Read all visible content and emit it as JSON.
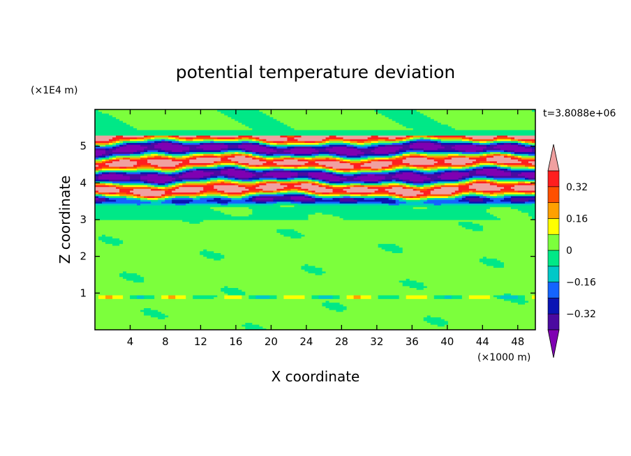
{
  "chart_data": {
    "type": "heatmap",
    "title": "potential temperature deviation",
    "xlabel": "X coordinate",
    "ylabel": "Z coordinate",
    "x_unit": "(×1000 m)",
    "y_unit": "(×1E4 m)",
    "time_label": "t=3.8088e+06",
    "xlim": [
      0,
      50
    ],
    "ylim": [
      0,
      6
    ],
    "x_ticks": [
      4,
      8,
      12,
      16,
      20,
      24,
      28,
      32,
      36,
      40,
      44,
      48
    ],
    "y_ticks": [
      1,
      2,
      3,
      4,
      5
    ],
    "x_tick_labels": [
      "4",
      "8",
      "12",
      "16",
      "20",
      "24",
      "28",
      "32",
      "36",
      "40",
      "44",
      "48"
    ],
    "y_tick_labels": [
      "1",
      "2",
      "3",
      "4",
      "5"
    ],
    "colorbar": {
      "levels": [
        -0.4,
        -0.32,
        -0.24,
        -0.16,
        -0.08,
        0,
        0.08,
        0.16,
        0.24,
        0.32,
        0.4
      ],
      "labels": [
        "0.32",
        "0.16",
        "0",
        "−0.16",
        "−0.32"
      ],
      "label_values": [
        0.32,
        0.16,
        0,
        -0.16,
        -0.32
      ],
      "colors": [
        "#7f00b2",
        "#4b0aa0",
        "#0a14b4",
        "#1464ff",
        "#00c8c8",
        "#00e887",
        "#7cff3c",
        "#ffff00",
        "#ffa000",
        "#ff5000",
        "#ff1e1e",
        "#f0a0a0"
      ],
      "extend": "both"
    },
    "bands": [
      {
        "z_range": [
          5.3,
          6.0
        ],
        "description_level": 0.0
      },
      {
        "z_range": [
          3.35,
          5.3
        ],
        "description_level": "alternating ±0.4"
      },
      {
        "z_range": [
          0.0,
          3.35
        ],
        "description_level": 0.04
      }
    ]
  }
}
